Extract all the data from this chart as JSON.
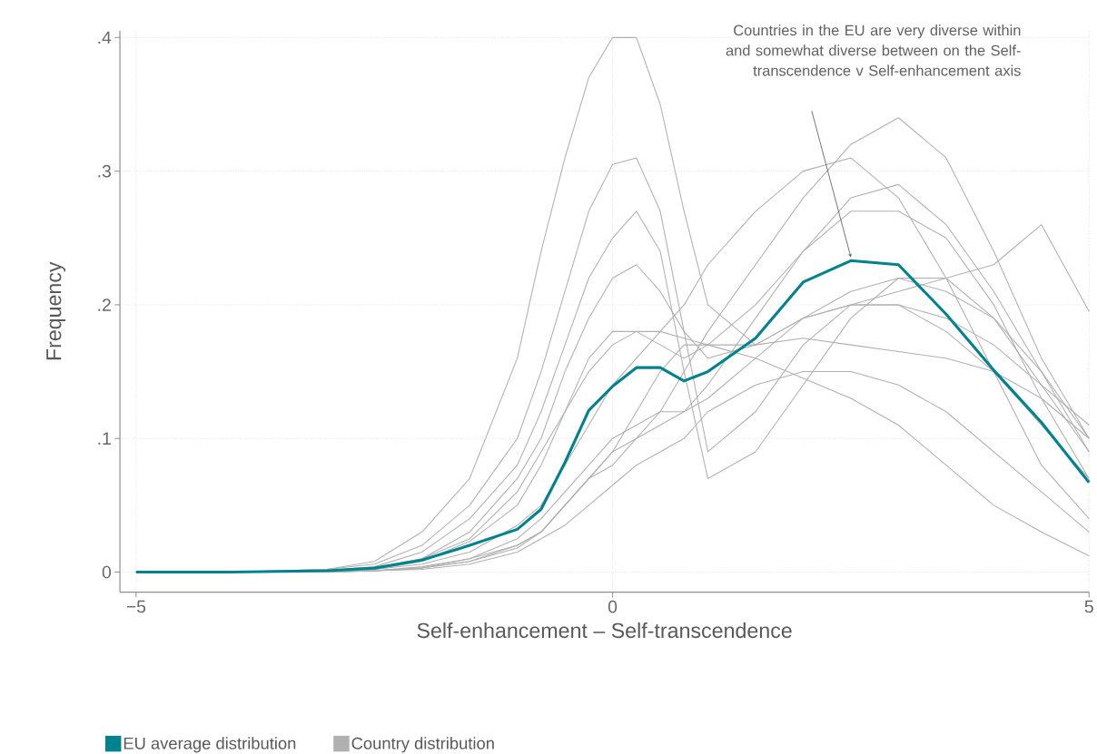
{
  "chart_data": {
    "type": "line",
    "xlabel": "Self-enhancement – Self-transcendence",
    "ylabel": "Frequency",
    "x": [
      -5,
      -4,
      -3,
      -2.5,
      -2,
      -1.5,
      -1,
      -0.75,
      -0.5,
      -0.25,
      0,
      0.25,
      0.5,
      0.75,
      1,
      1.5,
      2,
      2.5,
      3,
      3.5,
      4,
      4.5,
      5
    ],
    "xlim": [
      -5.17,
      5
    ],
    "ylim": [
      -0.015,
      0.405
    ],
    "xticks": [
      {
        "value": -5,
        "label": "−5"
      },
      0,
      5
    ],
    "yticks": [
      0,
      {
        "value": 0.1,
        "label": ".1"
      },
      {
        "value": 0.2,
        "label": ".2"
      },
      {
        "value": 0.3,
        "label": ".3"
      },
      {
        "value": 0.4,
        "label": ".4"
      }
    ],
    "grid": true,
    "legend": "bottom left",
    "marker": "none",
    "line_style": "solid",
    "annotations": [
      "Countries in the EU are very diverse within and somewhat diverse between on the Self-transcendence v Self-enhancement axis"
    ],
    "series": [
      {
        "name": "EU average distribution",
        "color": "#00838f",
        "values": [
          0,
          0,
          0.001,
          0.003,
          0.009,
          0.02,
          0.032,
          0.047,
          0.082,
          0.121,
          0.139,
          0.153,
          0.153,
          0.143,
          0.15,
          0.175,
          0.217,
          0.233,
          0.23,
          0.193,
          0.151,
          0.112,
          0.067
        ]
      },
      {
        "name": "Country distribution",
        "color": "#b0b0b0",
        "values": [
          0,
          0,
          0.002,
          0.008,
          0.03,
          0.07,
          0.16,
          0.24,
          0.31,
          0.37,
          0.4,
          0.4,
          0.35,
          0.27,
          0.2,
          0.17,
          0.19,
          0.21,
          0.22,
          0.21,
          0.19,
          0.15,
          0.1
        ]
      },
      {
        "color": "#b0b0b0",
        "values": [
          0,
          0,
          0.002,
          0.006,
          0.02,
          0.05,
          0.1,
          0.15,
          0.21,
          0.27,
          0.305,
          0.31,
          0.27,
          0.18,
          0.09,
          0.12,
          0.17,
          0.2,
          0.2,
          0.18,
          0.15,
          0.11,
          0.07
        ]
      },
      {
        "color": "#b0b0b0",
        "values": [
          0,
          0,
          0.001,
          0.004,
          0.015,
          0.04,
          0.08,
          0.12,
          0.17,
          0.22,
          0.25,
          0.27,
          0.24,
          0.15,
          0.07,
          0.09,
          0.14,
          0.19,
          0.22,
          0.22,
          0.19,
          0.14,
          0.09
        ]
      },
      {
        "color": "#b0b0b0",
        "values": [
          0,
          0,
          0.001,
          0.003,
          0.01,
          0.03,
          0.07,
          0.1,
          0.15,
          0.19,
          0.22,
          0.23,
          0.21,
          0.18,
          0.16,
          0.17,
          0.19,
          0.2,
          0.21,
          0.22,
          0.23,
          0.26,
          0.195
        ]
      },
      {
        "color": "#b0b0b0",
        "values": [
          0,
          0,
          0,
          0.001,
          0.004,
          0.01,
          0.02,
          0.03,
          0.05,
          0.07,
          0.08,
          0.1,
          0.12,
          0.15,
          0.18,
          0.23,
          0.28,
          0.32,
          0.34,
          0.31,
          0.24,
          0.16,
          0.1
        ]
      },
      {
        "color": "#b0b0b0",
        "values": [
          0,
          0,
          0.001,
          0.002,
          0.006,
          0.015,
          0.035,
          0.05,
          0.08,
          0.11,
          0.14,
          0.16,
          0.18,
          0.2,
          0.23,
          0.27,
          0.3,
          0.31,
          0.28,
          0.22,
          0.15,
          0.08,
          0.04
        ]
      },
      {
        "color": "#b0b0b0",
        "values": [
          0,
          0,
          0.001,
          0.003,
          0.01,
          0.025,
          0.06,
          0.09,
          0.12,
          0.15,
          0.17,
          0.18,
          0.18,
          0.175,
          0.17,
          0.17,
          0.175,
          0.17,
          0.165,
          0.16,
          0.15,
          0.13,
          0.1
        ]
      },
      {
        "color": "#b0b0b0",
        "values": [
          0,
          0,
          0,
          0.001,
          0.003,
          0.008,
          0.02,
          0.03,
          0.05,
          0.07,
          0.09,
          0.12,
          0.15,
          0.17,
          0.17,
          0.16,
          0.145,
          0.13,
          0.11,
          0.08,
          0.05,
          0.03,
          0.012
        ]
      },
      {
        "color": "#b0b0b0",
        "values": [
          0,
          0,
          0,
          0.001,
          0.002,
          0.006,
          0.015,
          0.025,
          0.035,
          0.05,
          0.065,
          0.08,
          0.09,
          0.1,
          0.12,
          0.14,
          0.15,
          0.15,
          0.14,
          0.12,
          0.09,
          0.06,
          0.03
        ]
      },
      {
        "color": "#b0b0b0",
        "values": [
          0,
          0,
          0,
          0.001,
          0.003,
          0.008,
          0.018,
          0.03,
          0.05,
          0.07,
          0.09,
          0.1,
          0.11,
          0.12,
          0.14,
          0.19,
          0.24,
          0.28,
          0.29,
          0.26,
          0.21,
          0.15,
          0.09
        ]
      },
      {
        "color": "#b0b0b0",
        "values": [
          0,
          0,
          0.001,
          0.002,
          0.008,
          0.023,
          0.05,
          0.08,
          0.12,
          0.16,
          0.18,
          0.18,
          0.17,
          0.16,
          0.17,
          0.2,
          0.24,
          0.27,
          0.27,
          0.25,
          0.2,
          0.13,
          0.07
        ]
      },
      {
        "color": "#b0b0b0",
        "values": [
          0,
          0,
          0,
          0.001,
          0.003,
          0.01,
          0.025,
          0.04,
          0.06,
          0.08,
          0.1,
          0.11,
          0.12,
          0.12,
          0.13,
          0.16,
          0.19,
          0.2,
          0.2,
          0.19,
          0.17,
          0.14,
          0.11
        ]
      }
    ]
  }
}
